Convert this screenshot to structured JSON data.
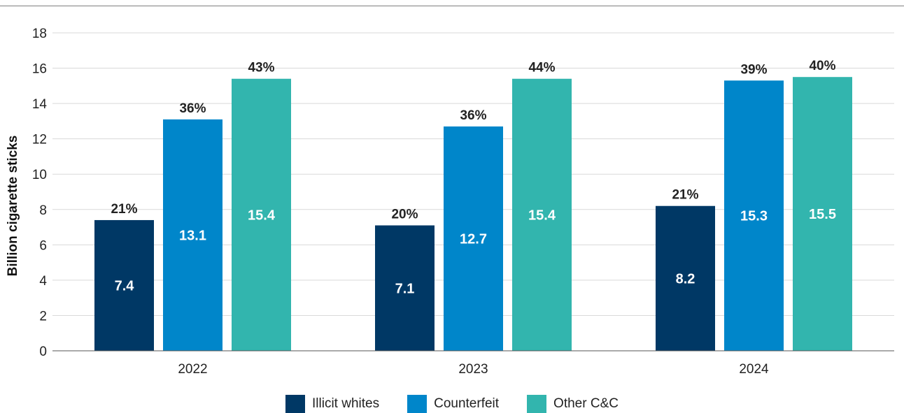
{
  "chart_data": {
    "type": "bar",
    "categories": [
      "2022",
      "2023",
      "2024"
    ],
    "series": [
      {
        "name": "Illicit whites",
        "color": "#003865",
        "values": [
          7.4,
          7.1,
          8.2
        ],
        "value_labels": [
          "7.4",
          "7.1",
          "8.2"
        ],
        "share_labels": [
          "21%",
          "20%",
          "21%"
        ]
      },
      {
        "name": "Counterfeit",
        "color": "#0086CA",
        "values": [
          13.1,
          12.7,
          15.3
        ],
        "value_labels": [
          "13.1",
          "12.7",
          "15.3"
        ],
        "share_labels": [
          "36%",
          "36%",
          "39%"
        ]
      },
      {
        "name": "Other C&C",
        "color": "#32B5AE",
        "values": [
          15.4,
          15.4,
          15.5
        ],
        "value_labels": [
          "15.4",
          "15.4",
          "15.5"
        ],
        "share_labels": [
          "43%",
          "44%",
          "40%"
        ]
      }
    ],
    "ylabel": "Billion cigarette sticks",
    "xlabel": "",
    "ylim": [
      0,
      18
    ],
    "yticks": [
      "0",
      "2",
      "4",
      "6",
      "8",
      "10",
      "12",
      "14",
      "16",
      "18"
    ],
    "grid": true,
    "legend_position": "bottom"
  }
}
